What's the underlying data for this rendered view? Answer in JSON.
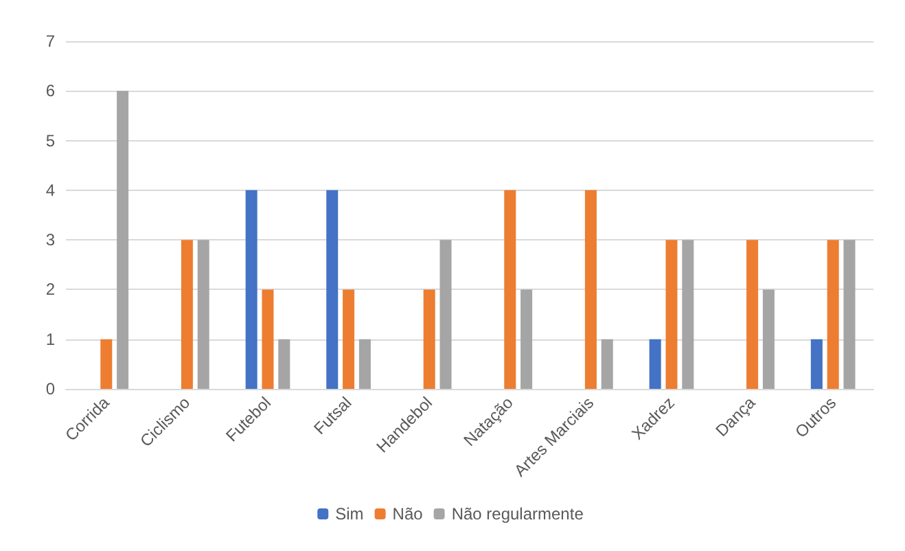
{
  "chart_data": {
    "type": "bar",
    "categories": [
      "Corrida",
      "Ciclismo",
      "Futebol",
      "Futsal",
      "Handebol",
      "Natação",
      "Artes Marciais",
      "Xadrez",
      "Dança",
      "Outros"
    ],
    "series": [
      {
        "name": "Sim",
        "color": "#4472c4",
        "values": [
          0,
          0,
          4,
          4,
          0,
          0,
          0,
          1,
          0,
          1
        ]
      },
      {
        "name": "Não",
        "color": "#ed7d31",
        "values": [
          1,
          3,
          2,
          2,
          2,
          4,
          4,
          3,
          3,
          3
        ]
      },
      {
        "name": "Não regularmente",
        "color": "#a5a5a5",
        "values": [
          6,
          3,
          1,
          1,
          3,
          2,
          1,
          3,
          2,
          3
        ]
      }
    ],
    "ylim": [
      0,
      7
    ],
    "yticks": [
      0,
      1,
      2,
      3,
      4,
      5,
      6,
      7
    ],
    "grid": "y",
    "legend": "bottom"
  }
}
